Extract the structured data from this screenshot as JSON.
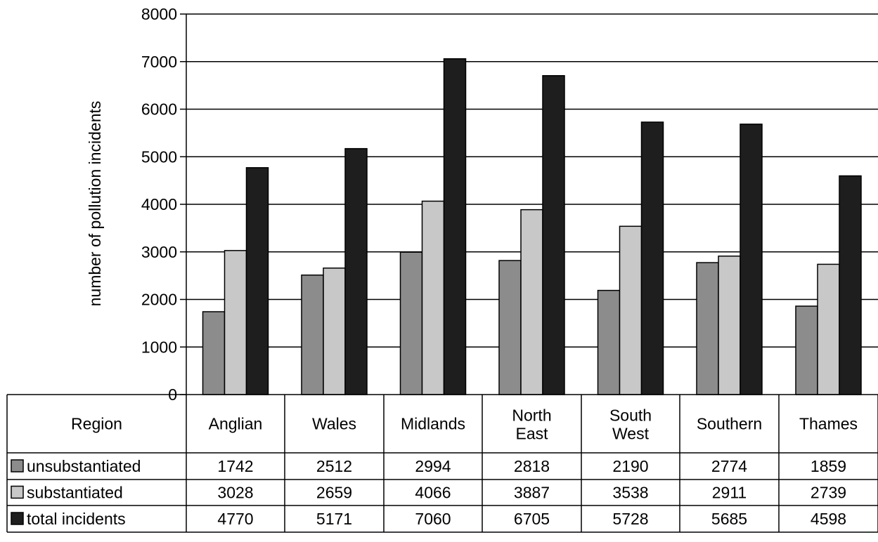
{
  "chart_data": {
    "type": "bar",
    "ylabel": "number of pollution incidents",
    "ylim": [
      0,
      8000
    ],
    "yticks": [
      0,
      1000,
      2000,
      3000,
      4000,
      5000,
      6000,
      7000,
      8000
    ],
    "grid": true,
    "legend": "in data table rows",
    "table_header": "Region",
    "categories": [
      [
        "Anglian"
      ],
      [
        "Wales"
      ],
      [
        "Midlands"
      ],
      [
        "North",
        "East"
      ],
      [
        "South",
        "West"
      ],
      [
        "Southern"
      ],
      [
        "Thames"
      ]
    ],
    "series": [
      {
        "name": "unsubstantiated",
        "color": "#8c8c8c",
        "values": [
          1742,
          2512,
          2994,
          2818,
          2190,
          2774,
          1859
        ]
      },
      {
        "name": "substantiated",
        "color": "#c8c8c8",
        "values": [
          3028,
          2659,
          4066,
          3887,
          3538,
          2911,
          2739
        ]
      },
      {
        "name": "total incidents",
        "color": "#1e1e1e",
        "values": [
          4770,
          5171,
          7060,
          6705,
          5728,
          5685,
          4598
        ]
      }
    ]
  }
}
